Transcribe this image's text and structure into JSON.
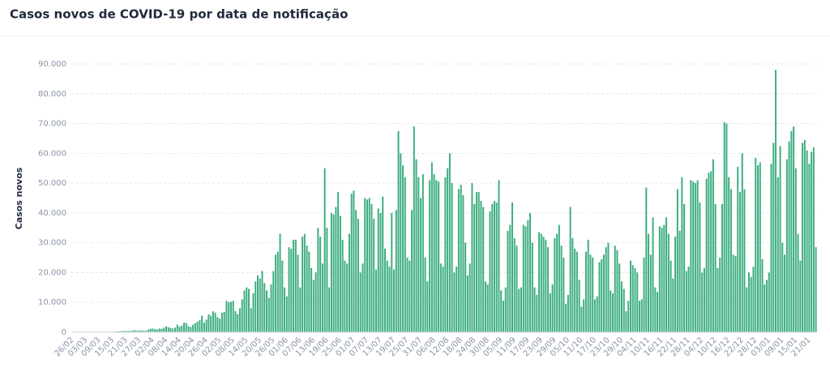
{
  "chart_data": {
    "type": "bar",
    "title": "Casos novos de COVID-19 por data de notificação",
    "ylabel": "Casos novos",
    "color": "#3dae7f",
    "grid": true,
    "ylim": [
      0,
      90000
    ],
    "yticks": [
      0,
      {
        "value": 10000,
        "label": "10.000"
      },
      {
        "value": 20000,
        "label": "20.000"
      },
      {
        "value": 30000,
        "label": "30.000"
      },
      {
        "value": 40000,
        "label": "40.000"
      },
      {
        "value": 50000,
        "label": "50.000"
      },
      {
        "value": 60000,
        "label": "60.000"
      },
      {
        "value": 70000,
        "label": "70.000"
      },
      {
        "value": 80000,
        "label": "80.000"
      },
      {
        "value": 90000,
        "label": "90.000"
      }
    ],
    "categories": [
      "26/02",
      null,
      null,
      null,
      null,
      null,
      "03/03",
      null,
      null,
      null,
      null,
      null,
      "09/03",
      null,
      null,
      null,
      null,
      null,
      "15/03",
      null,
      null,
      null,
      null,
      null,
      "21/03",
      null,
      null,
      null,
      null,
      null,
      "27/03",
      null,
      null,
      null,
      null,
      null,
      "02/04",
      null,
      null,
      null,
      null,
      null,
      "08/04",
      null,
      null,
      null,
      null,
      null,
      "14/04",
      null,
      null,
      null,
      null,
      null,
      "20/04",
      null,
      null,
      null,
      null,
      null,
      "26/04",
      null,
      null,
      null,
      null,
      null,
      "02/05",
      null,
      null,
      null,
      null,
      null,
      "08/05",
      null,
      null,
      null,
      null,
      null,
      "14/05",
      null,
      null,
      null,
      null,
      null,
      "20/05",
      null,
      null,
      null,
      null,
      null,
      "26/05",
      null,
      null,
      null,
      null,
      null,
      "01/06",
      null,
      null,
      null,
      null,
      null,
      "07/06",
      null,
      null,
      null,
      null,
      null,
      "13/06",
      null,
      null,
      null,
      null,
      null,
      "19/06",
      null,
      null,
      null,
      null,
      null,
      "25/06",
      null,
      null,
      null,
      null,
      null,
      "01/07",
      null,
      null,
      null,
      null,
      null,
      "07/07",
      null,
      null,
      null,
      null,
      null,
      "13/07",
      null,
      null,
      null,
      null,
      null,
      "19/07",
      null,
      null,
      null,
      null,
      null,
      "25/07",
      null,
      null,
      null,
      null,
      null,
      "31/07",
      null,
      null,
      null,
      null,
      null,
      "06/08",
      null,
      null,
      null,
      null,
      null,
      "12/08",
      null,
      null,
      null,
      null,
      null,
      "18/08",
      null,
      null,
      null,
      null,
      null,
      "24/08",
      null,
      null,
      null,
      null,
      null,
      "30/08",
      null,
      null,
      null,
      null,
      null,
      "05/09",
      null,
      null,
      null,
      null,
      null,
      "11/09",
      null,
      null,
      null,
      null,
      null,
      "17/09",
      null,
      null,
      null,
      null,
      null,
      "23/09",
      null,
      null,
      null,
      null,
      null,
      "29/09",
      null,
      null,
      null,
      null,
      null,
      "05/10",
      null,
      null,
      null,
      null,
      null,
      "11/10",
      null,
      null,
      null,
      null,
      null,
      "17/10",
      null,
      null,
      null,
      null,
      null,
      "23/10",
      null,
      null,
      null,
      null,
      null,
      "29/10",
      null,
      null,
      null,
      null,
      null,
      "04/11",
      null,
      null,
      null,
      null,
      null,
      "10/11",
      null,
      null,
      null,
      null,
      null,
      "16/11",
      null,
      null,
      null,
      null,
      null,
      "22/11",
      null,
      null,
      null,
      null,
      null,
      "28/11",
      null,
      null,
      null,
      null,
      null,
      "04/12",
      null,
      null,
      null,
      null,
      null,
      "10/12",
      null,
      null,
      null,
      null,
      null,
      "16/12",
      null,
      null,
      null,
      null,
      null,
      "22/12",
      null,
      null,
      null,
      null,
      null,
      "28/12",
      null,
      null,
      null,
      null,
      null,
      "03/01",
      null,
      null,
      null,
      null,
      null,
      "09/01",
      null,
      null,
      null,
      null,
      null,
      "15/01",
      null,
      null,
      null,
      null,
      null,
      "21/01",
      null,
      null,
      null
    ],
    "values": [
      0,
      0,
      0,
      0,
      0,
      0,
      1,
      0,
      1,
      0,
      0,
      2,
      5,
      10,
      20,
      30,
      40,
      60,
      100,
      150,
      200,
      250,
      300,
      400,
      350,
      400,
      300,
      500,
      600,
      450,
      500,
      600,
      450,
      400,
      800,
      1100,
      1200,
      1000,
      900,
      1200,
      1100,
      1500,
      1900,
      1600,
      1400,
      1200,
      1500,
      2500,
      1800,
      2200,
      3200,
      3000,
      2000,
      1700,
      2500,
      3000,
      3500,
      4000,
      5500,
      3200,
      4200,
      6000,
      5500,
      7000,
      6500,
      5000,
      4500,
      6500,
      6800,
      10500,
      10000,
      10200,
      10500,
      7000,
      6000,
      8000,
      11000,
      14000,
      15000,
      14500,
      8000,
      13000,
      17000,
      19000,
      18000,
      20500,
      16500,
      14000,
      11500,
      16000,
      20500,
      26000,
      27000,
      33000,
      24000,
      15000,
      12000,
      28500,
      28000,
      31000,
      31000,
      26000,
      15000,
      32000,
      33000,
      29000,
      27000,
      21500,
      17500,
      20000,
      35000,
      32000,
      23000,
      55000,
      35000,
      15000,
      40000,
      39500,
      42000,
      47000,
      39000,
      31000,
      24000,
      23000,
      33000,
      46500,
      47500,
      41000,
      38000,
      20000,
      23000,
      45000,
      44500,
      45000,
      43000,
      38000,
      21000,
      41500,
      40000,
      45500,
      28000,
      24000,
      22000,
      40000,
      21000,
      41000,
      67500,
      60000,
      56000,
      52000,
      25000,
      24000,
      41000,
      69000,
      58000,
      52000,
      45000,
      53000,
      25000,
      17000,
      51000,
      57000,
      53000,
      51000,
      50500,
      23000,
      22000,
      52000,
      55000,
      60000,
      50000,
      20000,
      22000,
      48000,
      49500,
      46000,
      30000,
      19000,
      23000,
      50000,
      43000,
      47000,
      47000,
      44000,
      42000,
      17000,
      16000,
      40500,
      43000,
      44000,
      43500,
      51000,
      14000,
      10500,
      15000,
      34000,
      36000,
      43500,
      31500,
      29000,
      14500,
      15000,
      36000,
      35500,
      37500,
      40000,
      30000,
      15000,
      12500,
      33500,
      33000,
      32000,
      31000,
      28500,
      13000,
      16000,
      31500,
      33000,
      36000,
      29000,
      25000,
      9500,
      12500,
      42000,
      31500,
      28000,
      27000,
      17500,
      8500,
      11000,
      27000,
      31000,
      26000,
      25000,
      11000,
      12000,
      23500,
      24500,
      26000,
      28500,
      30000,
      14000,
      13000,
      29000,
      27500,
      23000,
      17000,
      14500,
      7000,
      10500,
      24000,
      22500,
      21500,
      20000,
      10500,
      11000,
      25000,
      48500,
      33000,
      26000,
      38500,
      15000,
      13500,
      35500,
      35000,
      36000,
      38500,
      33000,
      24000,
      18000,
      32000,
      48000,
      34000,
      52000,
      43000,
      20500,
      22000,
      51000,
      50500,
      50000,
      51000,
      43500,
      20000,
      21500,
      51500,
      53500,
      54000,
      58000,
      43000,
      21500,
      25000,
      43000,
      70500,
      70000,
      52000,
      48000,
      26000,
      25500,
      55500,
      47000,
      60000,
      48000,
      15000,
      20000,
      18500,
      22000,
      58500,
      56000,
      57000,
      24500,
      16000,
      17500,
      20000,
      56500,
      63500,
      88000,
      52000,
      62500,
      30000,
      26000,
      58000,
      64000,
      67500,
      69000,
      55000,
      33000,
      24000,
      63500,
      64500,
      61000,
      56500,
      60500,
      62000,
      28500
    ]
  }
}
